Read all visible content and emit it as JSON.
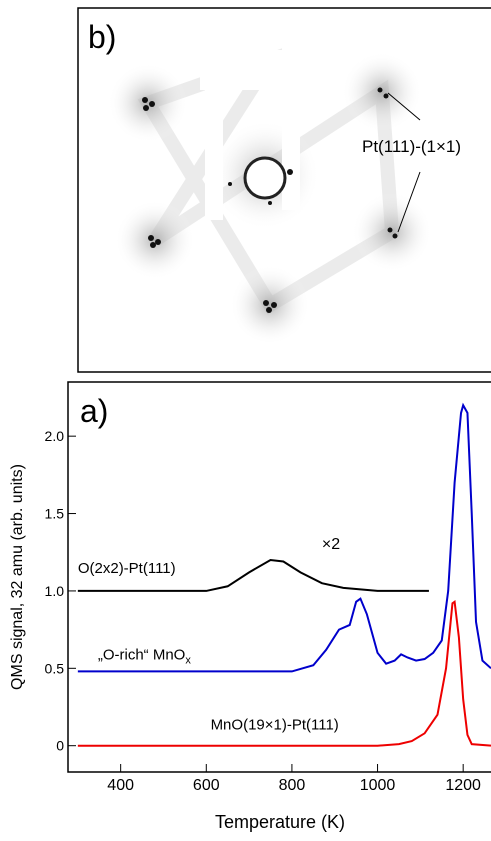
{
  "panel_b": {
    "label": "b)",
    "annotation": "Pt(111)-(1×1)"
  },
  "chart_data": {
    "type": "line",
    "panel_label": "a)",
    "x_label": "Temperature (K)",
    "y_label": "QMS signal, 32 amu (arb. units)",
    "xlim": [
      277,
      1265
    ],
    "xticks": [
      400,
      600,
      800,
      1000,
      1200
    ],
    "ylim": [
      -0.17,
      2.35
    ],
    "yticks": [
      0,
      0.5,
      {
        "value": 1,
        "label": "1.0"
      },
      1.5,
      {
        "value": 2,
        "label": "2.0"
      }
    ],
    "annotation": "×2",
    "series": [
      {
        "name": "O(2x2)-Pt(111)",
        "color": "#000000",
        "x": [
          300,
          600,
          650,
          700,
          750,
          780,
          820,
          870,
          920,
          1000,
          1120
        ],
        "values": [
          1.0,
          1.0,
          1.03,
          1.12,
          1.2,
          1.19,
          1.12,
          1.05,
          1.02,
          1.0,
          1.0
        ]
      },
      {
        "name": "„O-rich“ MnO",
        "name_sub": "x",
        "color": "#0000cc",
        "x": [
          300,
          800,
          850,
          880,
          910,
          935,
          950,
          960,
          975,
          1000,
          1020,
          1040,
          1055,
          1070,
          1090,
          1110,
          1130,
          1150,
          1165,
          1180,
          1195,
          1200,
          1210,
          1220,
          1230,
          1245,
          1265
        ],
        "values": [
          0.48,
          0.48,
          0.52,
          0.62,
          0.75,
          0.78,
          0.93,
          0.95,
          0.85,
          0.6,
          0.53,
          0.55,
          0.59,
          0.57,
          0.55,
          0.56,
          0.6,
          0.68,
          1.0,
          1.7,
          2.15,
          2.2,
          2.15,
          1.5,
          0.8,
          0.55,
          0.5
        ]
      },
      {
        "name": "MnO(19×1)-Pt(111)",
        "color": "#ee0000",
        "x": [
          300,
          1000,
          1050,
          1080,
          1110,
          1140,
          1160,
          1175,
          1180,
          1190,
          1200,
          1210,
          1220,
          1265
        ],
        "values": [
          0,
          0,
          0.01,
          0.03,
          0.08,
          0.2,
          0.5,
          0.92,
          0.93,
          0.7,
          0.3,
          0.07,
          0.01,
          0
        ]
      }
    ]
  }
}
